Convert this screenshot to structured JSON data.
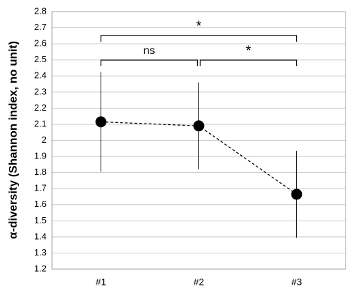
{
  "chart_data": {
    "type": "line",
    "y_label": "α-diversity (Shannon index, no unit)",
    "categories": [
      "#1",
      "#2",
      "#3"
    ],
    "values": [
      2.115,
      2.09,
      1.665
    ],
    "errors": [
      0.31,
      0.27,
      0.27
    ],
    "color": "#000000",
    "ylim": [
      1.2,
      2.8
    ],
    "yticks": [
      1.2,
      1.3,
      1.4,
      1.5,
      1.6,
      1.7,
      1.8,
      1.9,
      2,
      2.1,
      2.2,
      2.3,
      2.4,
      2.5,
      2.6,
      2.7,
      2.8
    ],
    "grid": true,
    "annotations": [
      {
        "from": 0,
        "to": 1,
        "label": "ns"
      },
      {
        "from": 1,
        "to": 2,
        "label": "*"
      },
      {
        "from": 0,
        "to": 2,
        "label": "*"
      }
    ]
  }
}
